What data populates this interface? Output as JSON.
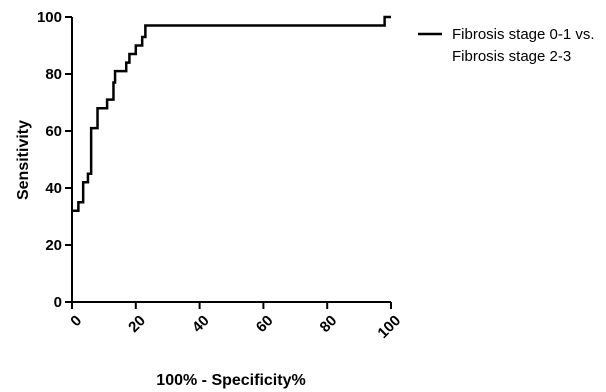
{
  "chart_data": {
    "type": "line",
    "line_shape": "step",
    "xlabel": "100% - Specificity%",
    "ylabel": "Sensitivity",
    "xlim": [
      0,
      100
    ],
    "ylim": [
      0,
      100
    ],
    "x_ticks": [
      0,
      20,
      40,
      60,
      80,
      100
    ],
    "y_ticks": [
      0,
      20,
      40,
      60,
      80,
      100
    ],
    "x_tick_labels": [
      "0",
      "20",
      "40",
      "60",
      "80",
      "100"
    ],
    "y_tick_labels": [
      "0",
      "20",
      "40",
      "60",
      "80",
      "100"
    ],
    "grid": false,
    "legend_position": "top-right",
    "legend_lines": [
      "Fibrosis stage 0-1 vs.",
      "Fibrosis stage 2-3"
    ],
    "line_color": "#000000",
    "series": [
      {
        "name": "Fibrosis stage 0-1 vs. Fibrosis stage 2-3",
        "x": [
          0,
          0,
          2,
          2,
          3.5,
          3.5,
          5,
          5,
          6,
          6,
          8,
          8,
          11,
          11,
          13,
          13,
          13.5,
          13.5,
          17,
          17,
          18,
          18,
          20,
          20,
          22,
          22,
          23,
          23,
          24,
          24,
          98,
          98,
          100
        ],
        "y": [
          32,
          32,
          32,
          35,
          35,
          42,
          42,
          45,
          45,
          61,
          61,
          68,
          68,
          71,
          71,
          77,
          77,
          81,
          81,
          84,
          84,
          87,
          87,
          90,
          90,
          93,
          93,
          97,
          97,
          97,
          97,
          100,
          100
        ]
      }
    ]
  }
}
